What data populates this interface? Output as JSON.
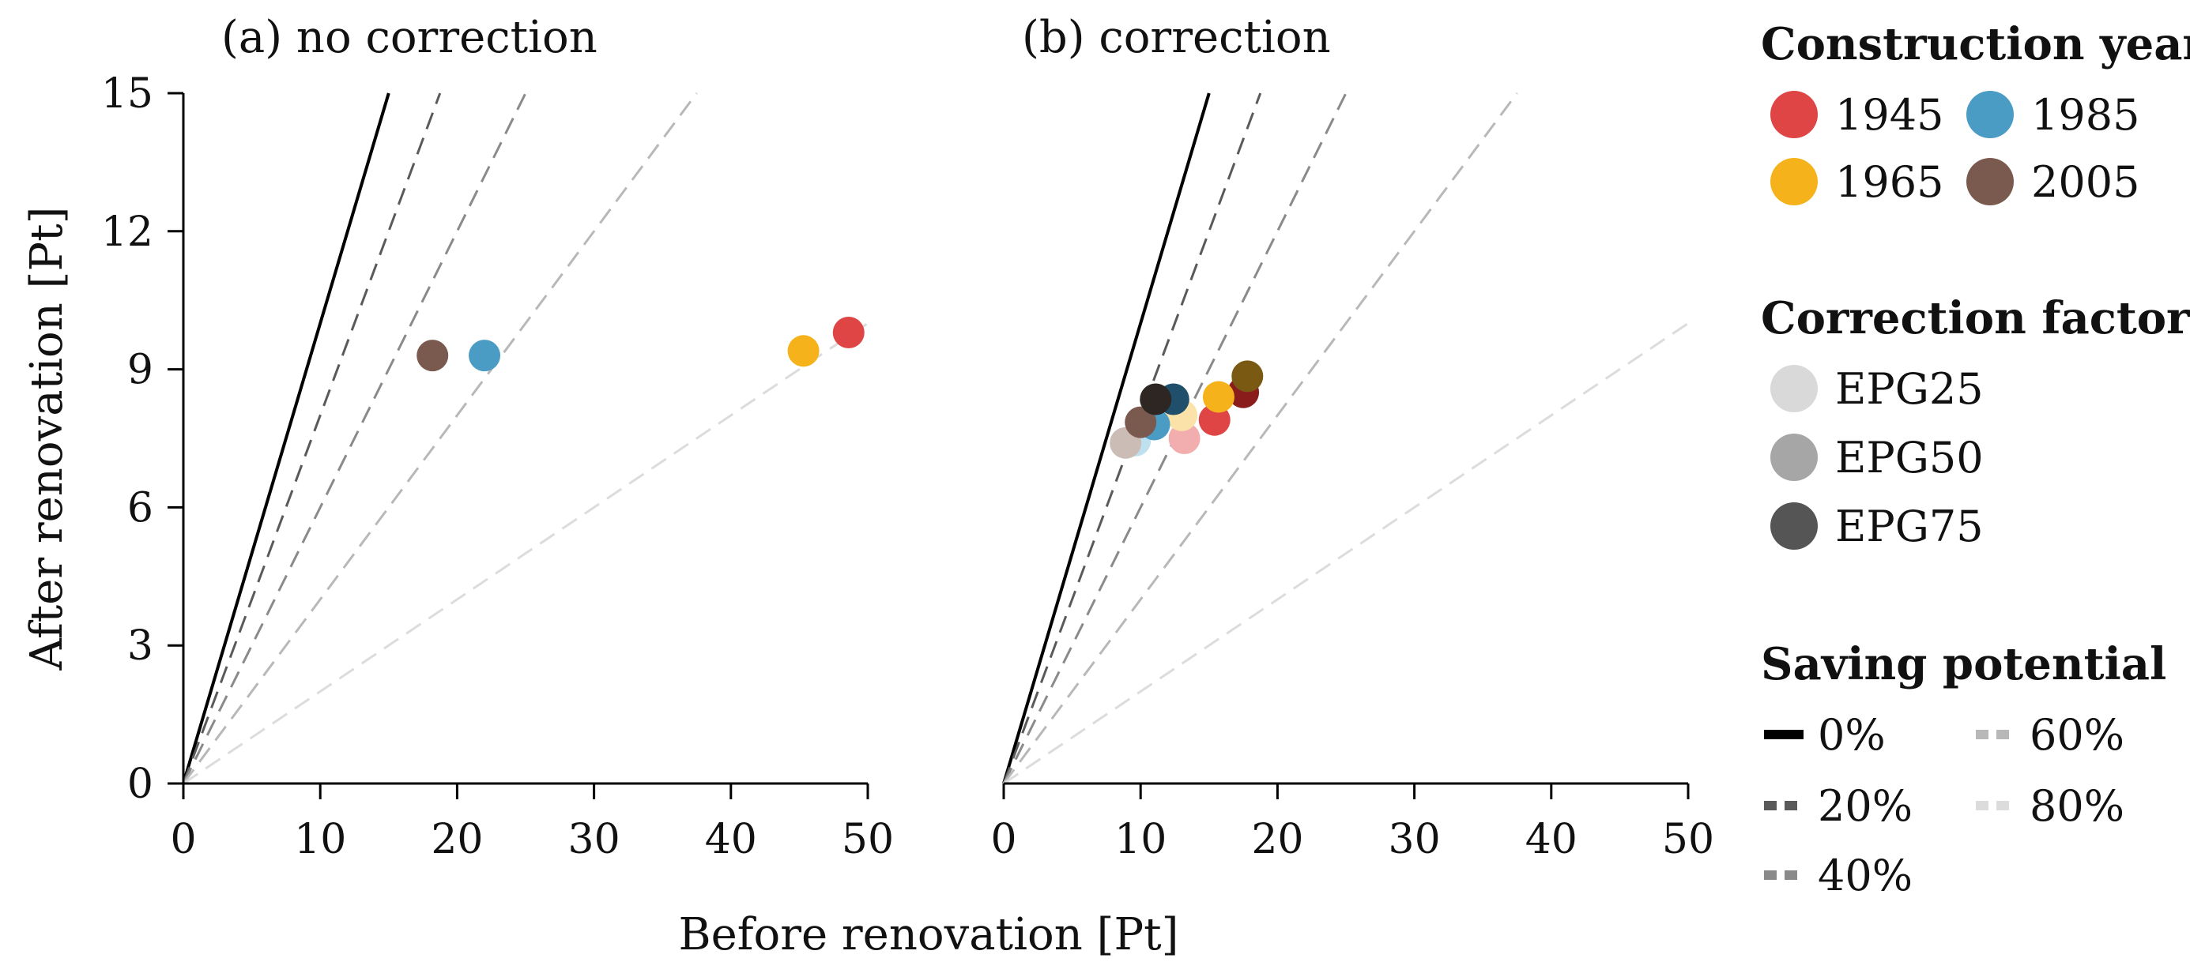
{
  "chart_data": [
    {
      "type": "scatter",
      "title": "(a) no correction",
      "xlabel": "Before renovation [Pt]",
      "ylabel": "After renovation [Pt]",
      "xlim": [
        0,
        50
      ],
      "ylim": [
        0,
        15
      ],
      "x_ticks": [
        "0",
        "10",
        "20",
        "30",
        "40",
        "50"
      ],
      "y_ticks": [
        "0",
        "3",
        "6",
        "9",
        "12",
        "15"
      ],
      "reference_lines": [
        {
          "saving": 0,
          "label": "0%",
          "color": "#000000",
          "dash": "solid"
        },
        {
          "saving": 20,
          "label": "20%",
          "color": "#5a5a5a",
          "dash": "dashed"
        },
        {
          "saving": 40,
          "label": "40%",
          "color": "#8a8a8a",
          "dash": "dashed"
        },
        {
          "saving": 60,
          "label": "60%",
          "color": "#b8b8b8",
          "dash": "dashed"
        },
        {
          "saving": 80,
          "label": "80%",
          "color": "#dcdcdc",
          "dash": "dashed"
        }
      ],
      "points": [
        {
          "year": "1945",
          "x": 48.6,
          "y": 9.8,
          "color": "#e04545"
        },
        {
          "year": "1965",
          "x": 45.3,
          "y": 9.4,
          "color": "#f5b21b"
        },
        {
          "year": "1985",
          "x": 22.0,
          "y": 9.3,
          "color": "#4a9cc4"
        },
        {
          "year": "2005",
          "x": 18.2,
          "y": 9.3,
          "color": "#7a5a4e"
        }
      ]
    },
    {
      "type": "scatter",
      "title": "(b) correction",
      "xlabel": "Before renovation [Pt]",
      "ylabel": "After renovation [Pt]",
      "xlim": [
        0,
        50
      ],
      "ylim": [
        0,
        15
      ],
      "x_ticks": [
        "0",
        "10",
        "20",
        "30",
        "40",
        "50"
      ],
      "reference_lines": [
        {
          "saving": 0,
          "label": "0%",
          "color": "#000000",
          "dash": "solid"
        },
        {
          "saving": 20,
          "label": "20%",
          "color": "#5a5a5a",
          "dash": "dashed"
        },
        {
          "saving": 40,
          "label": "40%",
          "color": "#8a8a8a",
          "dash": "dashed"
        },
        {
          "saving": 60,
          "label": "60%",
          "color": "#b8b8b8",
          "dash": "dashed"
        },
        {
          "saving": 80,
          "label": "80%",
          "color": "#dcdcdc",
          "dash": "dashed"
        }
      ],
      "points": [
        {
          "year": "1945",
          "factor": "EPG25",
          "x": 13.2,
          "y": 7.5,
          "color": "#f2aeae"
        },
        {
          "year": "1945",
          "factor": "EPG50",
          "x": 15.4,
          "y": 7.9,
          "color": "#e04545"
        },
        {
          "year": "1945",
          "factor": "EPG75",
          "x": 17.5,
          "y": 8.5,
          "color": "#8a1c1c"
        },
        {
          "year": "1965",
          "factor": "EPG25",
          "x": 13.0,
          "y": 8.0,
          "color": "#fbe2a8"
        },
        {
          "year": "1965",
          "factor": "EPG50",
          "x": 15.7,
          "y": 8.4,
          "color": "#f5b21b"
        },
        {
          "year": "1965",
          "factor": "EPG75",
          "x": 17.8,
          "y": 8.85,
          "color": "#7a5a12"
        },
        {
          "year": "1985",
          "factor": "EPG25",
          "x": 9.6,
          "y": 7.45,
          "color": "#bfe0ef"
        },
        {
          "year": "1985",
          "factor": "EPG50",
          "x": 11.0,
          "y": 7.8,
          "color": "#4a9cc4"
        },
        {
          "year": "1985",
          "factor": "EPG75",
          "x": 12.4,
          "y": 8.35,
          "color": "#1f4f6a"
        },
        {
          "year": "2005",
          "factor": "EPG25",
          "x": 8.9,
          "y": 7.4,
          "color": "#cbbdb6"
        },
        {
          "year": "2005",
          "factor": "EPG50",
          "x": 10.0,
          "y": 7.85,
          "color": "#7a5a4e"
        },
        {
          "year": "2005",
          "factor": "EPG75",
          "x": 11.1,
          "y": 8.35,
          "color": "#2e2622"
        }
      ]
    }
  ],
  "legend": {
    "construction_year": {
      "title": "Construction year",
      "items": [
        {
          "label": "1945",
          "color": "#e04545"
        },
        {
          "label": "1985",
          "color": "#4a9cc4"
        },
        {
          "label": "1965",
          "color": "#f5b21b"
        },
        {
          "label": "2005",
          "color": "#7a5a4e"
        }
      ]
    },
    "correction_factor": {
      "title": "Correction factor",
      "items": [
        {
          "label": "EPG25",
          "color": "#d9d9d9"
        },
        {
          "label": "EPG50",
          "color": "#a6a6a6"
        },
        {
          "label": "EPG75",
          "color": "#555555"
        }
      ]
    },
    "saving_potential": {
      "title": "Saving potential",
      "items": [
        {
          "label": "0%",
          "color": "#000000",
          "dash": "solid"
        },
        {
          "label": "60%",
          "color": "#b8b8b8",
          "dash": "dashed"
        },
        {
          "label": "20%",
          "color": "#5a5a5a",
          "dash": "dashed"
        },
        {
          "label": "80%",
          "color": "#dcdcdc",
          "dash": "dashed"
        },
        {
          "label": "40%",
          "color": "#8a8a8a",
          "dash": "dashed"
        }
      ]
    }
  }
}
